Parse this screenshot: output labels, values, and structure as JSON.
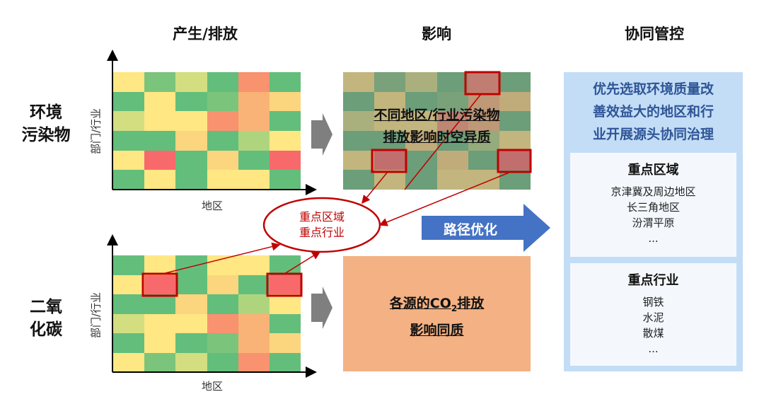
{
  "headers": {
    "produce": "产生/排放",
    "impact": "影响",
    "control": "协同管控"
  },
  "rows": {
    "pollutant_line1": "环境",
    "pollutant_line2": "污染物",
    "co2_line1": "二氧",
    "co2_line2": "化碳"
  },
  "axes": {
    "y_label": "部门/行业",
    "x_label": "地区"
  },
  "palette": {
    "G": "#63be7b",
    "G2": "#7bc47c",
    "LG": "#aed57e",
    "YG": "#d3de81",
    "Y": "#ffe784",
    "O": "#fcd57f",
    "PO": "#fab377",
    "OR": "#f8926f",
    "R": "#f8696b"
  },
  "heatmap_pollutant": [
    [
      "Y",
      "G2",
      "YG",
      "G",
      "OR",
      "G"
    ],
    [
      "G",
      "Y",
      "G",
      "G2",
      "PO",
      "O"
    ],
    [
      "YG",
      "Y",
      "Y",
      "OR",
      "PO",
      "G"
    ],
    [
      "G",
      "G",
      "O",
      "G",
      "LG",
      "Y"
    ],
    [
      "Y",
      "R",
      "G",
      "O",
      "G",
      "R"
    ],
    [
      "G",
      "Y",
      "G",
      "Y",
      "Y",
      "G"
    ]
  ],
  "heatmap_co2": [
    [
      "G",
      "Y",
      "G",
      "Y",
      "Y",
      "G"
    ],
    [
      "Y",
      "R",
      "G",
      "O",
      "G",
      "R"
    ],
    [
      "G",
      "G",
      "O",
      "G",
      "LG",
      "Y"
    ],
    [
      "YG",
      "Y",
      "Y",
      "OR",
      "PO",
      "G"
    ],
    [
      "G",
      "Y",
      "G",
      "G2",
      "PO",
      "O"
    ],
    [
      "Y",
      "G2",
      "YG",
      "G",
      "OR",
      "G"
    ]
  ],
  "impact": {
    "pollutant_line1": "不同地区/行业污染物",
    "pollutant_line2": "排放影响时空异质",
    "co2_line1_a": "各源的CO",
    "co2_sub": "2",
    "co2_line1_b": "排放",
    "co2_line2": "影响同质"
  },
  "focus": {
    "line1": "重点区域",
    "line2": "重点行业"
  },
  "path_arrow": "路径优化",
  "control": {
    "headline": [
      "优先选取环境质量改",
      "善效益大的地区和行",
      "业开展源头协同治理"
    ],
    "regions": {
      "title": "重点区域",
      "items": [
        "京津冀及周边地区",
        "长三角地区",
        "汾渭平原",
        "..."
      ]
    },
    "industries": {
      "title": "重点行业",
      "items": [
        "钢铁",
        "水泥",
        "散煤",
        "..."
      ]
    }
  },
  "colors": {
    "highlight_red": "#c00000",
    "arrow_blue": "#4472c4",
    "impact_orange": "#f4b183",
    "panel_blue": "#c3ddf6",
    "headline_blue": "#2f5597"
  }
}
